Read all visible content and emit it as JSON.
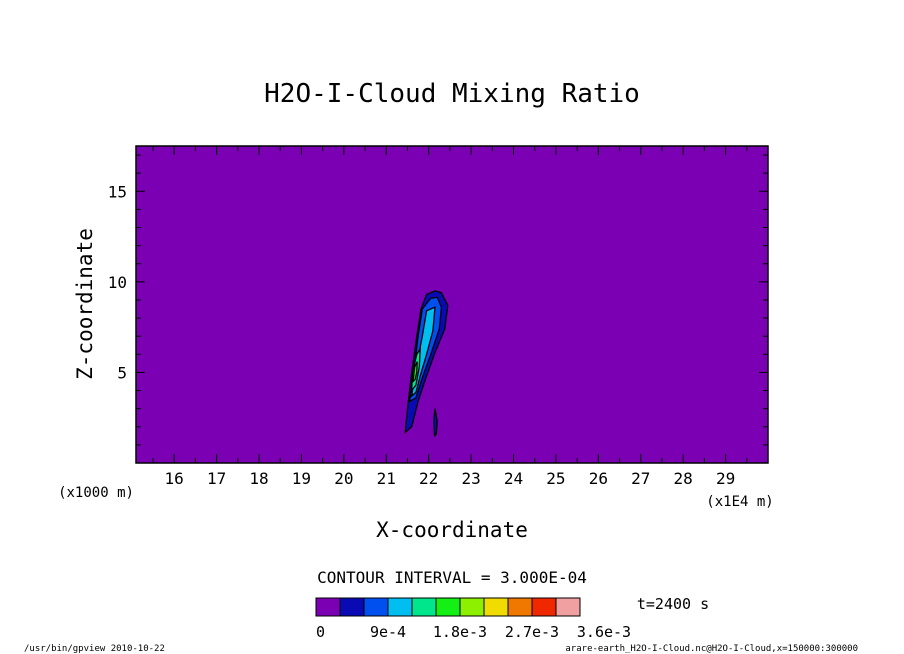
{
  "chart_data": {
    "type": "heatmap",
    "title": "H2O-I-Cloud Mixing Ratio",
    "xlabel": "X-coordinate",
    "ylabel": "Z-coordinate",
    "x_unit_left": "(x1000 m)",
    "x_unit_right": "(x1E4 m)",
    "xlim": [
      15.1,
      30.0
    ],
    "ylim": [
      0.0,
      17.5
    ],
    "x_ticks": [
      16,
      17,
      18,
      19,
      20,
      21,
      22,
      23,
      24,
      25,
      26,
      27,
      28,
      29
    ],
    "y_ticks": [
      5,
      10,
      15
    ],
    "background_color": "#7b00b4",
    "contour_interval_text": "CONTOUR INTERVAL = 3.000E-04",
    "time_text": "t=2400 s",
    "colorbar": {
      "colors": [
        "#7b00b4",
        "#0a0ab4",
        "#0050f0",
        "#00bef0",
        "#00e68c",
        "#14f014",
        "#8cf000",
        "#f0dc00",
        "#f07800",
        "#f02800",
        "#f0a0a0"
      ],
      "labels": [
        "0",
        "9e-4",
        "1.8e-3",
        "2.7e-3",
        "3.6e-3"
      ],
      "label_positions": [
        0,
        3,
        6,
        9,
        12
      ]
    },
    "cloud_regions": [
      {
        "level": 1,
        "color": "#0a0ab4",
        "points": [
          [
            21.45,
            1.7
          ],
          [
            21.5,
            3.0
          ],
          [
            21.6,
            5.0
          ],
          [
            21.72,
            7.0
          ],
          [
            21.82,
            8.5
          ],
          [
            21.95,
            9.3
          ],
          [
            22.15,
            9.5
          ],
          [
            22.3,
            9.4
          ],
          [
            22.45,
            8.7
          ],
          [
            22.38,
            7.4
          ],
          [
            22.15,
            6.1
          ],
          [
            21.92,
            4.6
          ],
          [
            21.75,
            3.4
          ],
          [
            21.6,
            2.0
          ]
        ]
      },
      {
        "level": 2,
        "color": "#0050f0",
        "points": [
          [
            21.55,
            3.4
          ],
          [
            21.65,
            5.0
          ],
          [
            21.75,
            7.0
          ],
          [
            21.85,
            8.5
          ],
          [
            22.05,
            9.1
          ],
          [
            22.2,
            9.15
          ],
          [
            22.3,
            8.6
          ],
          [
            22.25,
            7.4
          ],
          [
            22.05,
            6.0
          ],
          [
            21.85,
            4.7
          ],
          [
            21.7,
            3.6
          ]
        ]
      },
      {
        "level": 3,
        "color": "#00bef0",
        "points": [
          [
            21.6,
            3.7
          ],
          [
            21.7,
            5.2
          ],
          [
            21.85,
            7.0
          ],
          [
            21.95,
            8.4
          ],
          [
            22.15,
            8.6
          ],
          [
            22.1,
            7.3
          ],
          [
            21.95,
            6.0
          ],
          [
            21.8,
            4.8
          ],
          [
            21.7,
            3.9
          ]
        ]
      },
      {
        "level": 4,
        "color": "#00e68c",
        "points": [
          [
            21.6,
            4.0
          ],
          [
            21.62,
            5.0
          ],
          [
            21.72,
            6.0
          ],
          [
            21.8,
            6.3
          ],
          [
            21.78,
            5.3
          ],
          [
            21.7,
            4.3
          ]
        ]
      },
      {
        "level": 5,
        "color": "#14f014",
        "points": [
          [
            21.63,
            4.5
          ],
          [
            21.67,
            5.3
          ],
          [
            21.73,
            5.6
          ],
          [
            21.72,
            5.0
          ],
          [
            21.68,
            4.6
          ]
        ]
      },
      {
        "level": 1,
        "color": "#0a0ab4",
        "points": [
          [
            22.14,
            1.5
          ],
          [
            22.12,
            2.3
          ],
          [
            22.15,
            3.0
          ],
          [
            22.2,
            2.3
          ],
          [
            22.18,
            1.6
          ]
        ]
      }
    ]
  },
  "footer": {
    "left": "/usr/bin/gpview  2010-10-22",
    "right": "arare-earth_H2O-I-Cloud.nc@H2O-I-Cloud,x=150000:300000"
  }
}
